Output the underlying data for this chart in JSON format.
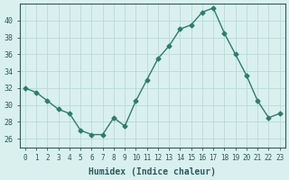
{
  "x": [
    0,
    1,
    2,
    3,
    4,
    5,
    6,
    7,
    8,
    9,
    10,
    11,
    12,
    13,
    14,
    15,
    16,
    17,
    18,
    19,
    20,
    21,
    22,
    23
  ],
  "y": [
    32,
    31.5,
    30.5,
    29.5,
    29,
    27,
    26.5,
    26.5,
    28.5,
    27.5,
    30.5,
    33,
    35.5,
    37,
    39,
    39.5,
    41,
    41.5,
    38.5,
    36,
    33.5,
    30.5,
    28.5,
    29
  ],
  "xlabel": "Humidex (Indice chaleur)",
  "xlim": [
    -0.5,
    23.5
  ],
  "ylim": [
    25,
    42
  ],
  "yticks": [
    26,
    28,
    30,
    32,
    34,
    36,
    38,
    40
  ],
  "xticks": [
    0,
    1,
    2,
    3,
    4,
    5,
    6,
    7,
    8,
    9,
    10,
    11,
    12,
    13,
    14,
    15,
    16,
    17,
    18,
    19,
    20,
    21,
    22,
    23
  ],
  "line_color": "#2d7d6e",
  "marker_color": "#2d7d6e",
  "bg_color": "#d9f0ef",
  "grid_color": "#b8dbd8",
  "font_color": "#2d5a5a",
  "font_family": "monospace"
}
